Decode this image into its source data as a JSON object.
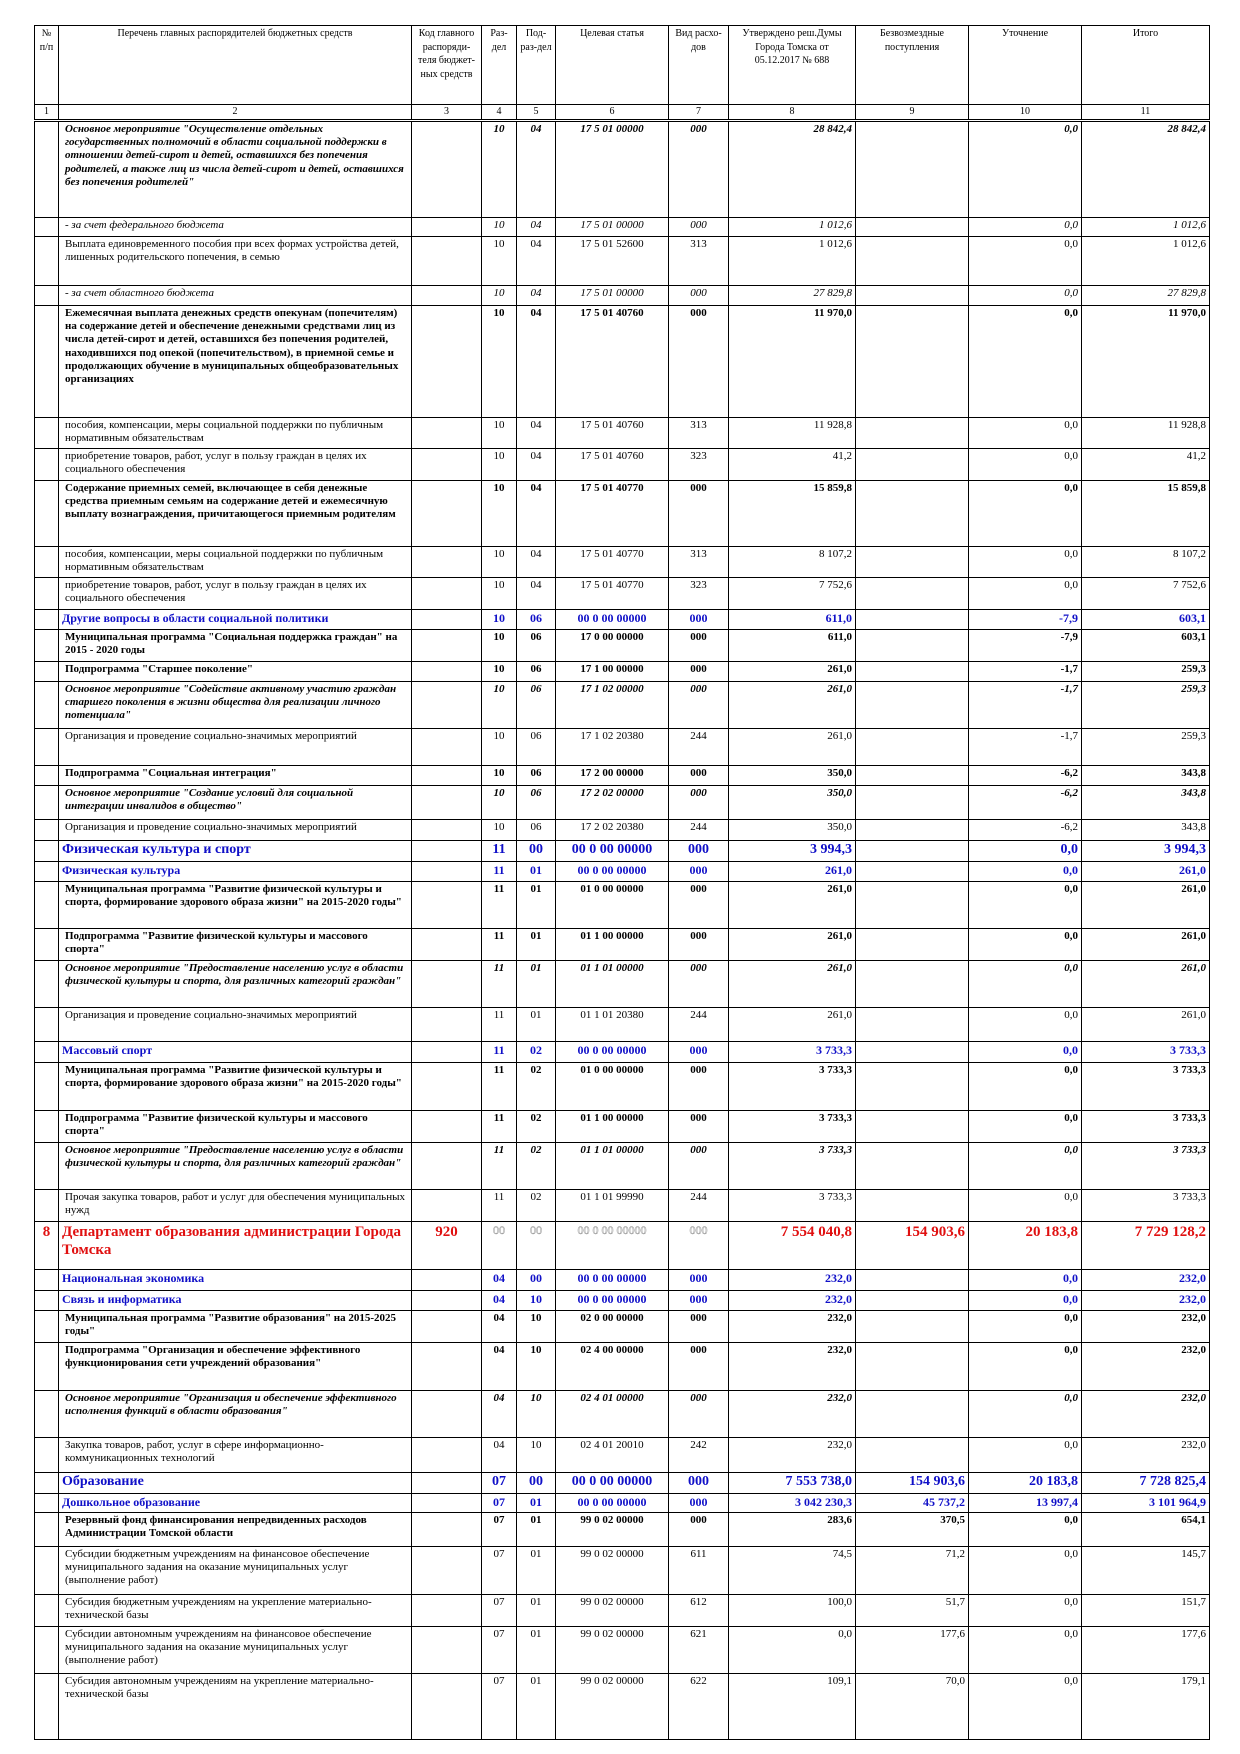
{
  "table": {
    "header": [
      "№ п/п",
      "Перечень главных распорядителей бюджетных средств",
      "Код главного распоряди-теля бюджет-ных средств",
      "Раз-дел",
      "Под-раз-дел",
      "Целевая статья",
      "Вид расхо-дов",
      "Утверждено реш.Думы Города Томска от 05.12.2017 № 688",
      "Безвозмездные поступления",
      "Уточнение",
      "Итого"
    ],
    "column_numbers": [
      "1",
      "2",
      "3",
      "4",
      "5",
      "6",
      "7",
      "8",
      "9",
      "10",
      "11"
    ],
    "rows": [
      [
        null,
        "Основное мероприятие \"Осуществление отдельных государственных полномочий в области социальной поддержки в отношении детей-сирот и детей, оставшихся без попечения родителей, а также лиц из числа детей-сирот и детей, оставшихся без попечения родителей\"",
        null,
        "10",
        "04",
        "17 5 01 00000",
        "000",
        "28 842,4",
        null,
        "0,0",
        "28 842,4"
      ],
      [
        null,
        "- за счет федерального бюджета",
        null,
        "10",
        "04",
        "17 5 01 00000",
        "000",
        "1 012,6",
        null,
        "0,0",
        "1 012,6"
      ],
      [
        null,
        "Выплата единовременного пособия при всех формах устройства детей, лишенных родительского попечения, в семью",
        null,
        "10",
        "04",
        "17 5 01 52600",
        "313",
        "1 012,6",
        null,
        "0,0",
        "1 012,6"
      ],
      [
        null,
        "- за счет областного бюджета",
        null,
        "10",
        "04",
        "17 5 01 00000",
        "000",
        "27 829,8",
        null,
        "0,0",
        "27 829,8"
      ],
      [
        null,
        "Ежемесячная выплата денежных средств опекунам (попечителям) на содержание детей и обеспечение денежными средствами лиц из числа детей-сирот и детей, оставшихся без попечения родителей, находившихся под опекой (попечительством), в приемной семье и продолжающих обучение в муниципальных общеобразовательных организациях",
        null,
        "10",
        "04",
        "17 5 01 40760",
        "000",
        "11 970,0",
        null,
        "0,0",
        "11 970,0"
      ],
      [
        null,
        "пособия, компенсации, меры социальной поддержки по публичным нормативным обязательствам",
        null,
        "10",
        "04",
        "17 5 01 40760",
        "313",
        "11 928,8",
        null,
        "0,0",
        "11 928,8"
      ],
      [
        null,
        "приобретение товаров, работ, услуг в пользу граждан в целях их социального обеспечения",
        null,
        "10",
        "04",
        "17 5 01 40760",
        "323",
        "41,2",
        null,
        "0,0",
        "41,2"
      ],
      [
        null,
        "Содержание приемных семей, включающее в себя денежные средства приемным семьям на содержание детей и ежемесячную выплату вознаграждения, причитающегося приемным родителям",
        null,
        "10",
        "04",
        "17 5 01 40770",
        "000",
        "15 859,8",
        null,
        "0,0",
        "15 859,8"
      ],
      [
        null,
        "пособия, компенсации, меры социальной поддержки по публичным нормативным обязательствам",
        null,
        "10",
        "04",
        "17 5 01 40770",
        "313",
        "8 107,2",
        null,
        "0,0",
        "8 107,2"
      ],
      [
        null,
        "приобретение товаров, работ, услуг в пользу граждан в целях их социального обеспечения",
        null,
        "10",
        "04",
        "17 5 01 40770",
        "323",
        "7 752,6",
        null,
        "0,0",
        "7 752,6"
      ],
      [
        null,
        "Другие вопросы в области социальной политики",
        null,
        "10",
        "06",
        "00 0 00 00000",
        "000",
        "611,0",
        null,
        "-7,9",
        "603,1"
      ],
      [
        null,
        "Муниципальная программа \"Социальная поддержка граждан\" на 2015 - 2020 годы",
        null,
        "10",
        "06",
        "17 0 00 00000",
        "000",
        "611,0",
        null,
        "-7,9",
        "603,1"
      ],
      [
        null,
        "Подпрограмма \"Старшее поколение\"",
        null,
        "10",
        "06",
        "17 1 00 00000",
        "000",
        "261,0",
        null,
        "-1,7",
        "259,3"
      ],
      [
        null,
        "Основное мероприятие \"Содействие активному участию граждан старшего поколения в жизни общества для реализации личного потенциала\"",
        null,
        "10",
        "06",
        "17 1 02 00000",
        "000",
        "261,0",
        null,
        "-1,7",
        "259,3"
      ],
      [
        null,
        "Организация и проведение социально-значимых мероприятий",
        null,
        "10",
        "06",
        "17 1 02 20380",
        "244",
        "261,0",
        null,
        "-1,7",
        "259,3"
      ],
      [
        null,
        "Подпрограмма \"Социальная интеграция\"",
        null,
        "10",
        "06",
        "17 2 00 00000",
        "000",
        "350,0",
        null,
        "-6,2",
        "343,8"
      ],
      [
        null,
        "Основное мероприятие \"Создание условий для социальной интеграции инвалидов в общество\"",
        null,
        "10",
        "06",
        "17 2 02 00000",
        "000",
        "350,0",
        null,
        "-6,2",
        "343,8"
      ],
      [
        null,
        "Организация и проведение социально-значимых мероприятий",
        null,
        "10",
        "06",
        "17 2 02 20380",
        "244",
        "350,0",
        null,
        "-6,2",
        "343,8"
      ],
      [
        null,
        "Физическая культура и спорт",
        null,
        "11",
        "00",
        "00 0 00 00000",
        "000",
        "3 994,3",
        null,
        "0,0",
        "3 994,3"
      ],
      [
        null,
        "Физическая культура",
        null,
        "11",
        "01",
        "00 0 00 00000",
        "000",
        "261,0",
        null,
        "0,0",
        "261,0"
      ],
      [
        null,
        "Муниципальная программа \"Развитие физической культуры и спорта, формирование здорового образа жизни\" на 2015-2020 годы\"",
        null,
        "11",
        "01",
        "01 0 00 00000",
        "000",
        "261,0",
        null,
        "0,0",
        "261,0"
      ],
      [
        null,
        "Подпрограмма \"Развитие физической культуры и массового спорта\"",
        null,
        "11",
        "01",
        "01 1 00 00000",
        "000",
        "261,0",
        null,
        "0,0",
        "261,0"
      ],
      [
        null,
        "Основное мероприятие \"Предоставление населению услуг в области физической культуры и спорта, для различных категорий граждан\"",
        null,
        "11",
        "01",
        "01 1 01 00000",
        "000",
        "261,0",
        null,
        "0,0",
        "261,0"
      ],
      [
        null,
        "Организация и проведение социально-значимых мероприятий",
        null,
        "11",
        "01",
        "01 1 01 20380",
        "244",
        "261,0",
        null,
        "0,0",
        "261,0"
      ],
      [
        null,
        "Массовый спорт",
        null,
        "11",
        "02",
        "00 0 00 00000",
        "000",
        "3 733,3",
        null,
        "0,0",
        "3 733,3"
      ],
      [
        null,
        "Муниципальная программа \"Развитие физической культуры и спорта, формирование здорового образа жизни\" на 2015-2020 годы\"",
        null,
        "11",
        "02",
        "01 0 00 00000",
        "000",
        "3 733,3",
        null,
        "0,0",
        "3 733,3"
      ],
      [
        null,
        "Подпрограмма \"Развитие физической культуры и массового спорта\"",
        null,
        "11",
        "02",
        "01 1 00 00000",
        "000",
        "3 733,3",
        null,
        "0,0",
        "3 733,3"
      ],
      [
        null,
        "Основное мероприятие \"Предоставление населению услуг в области физической культуры и спорта, для различных категорий граждан\"",
        null,
        "11",
        "02",
        "01 1 01 00000",
        "000",
        "3 733,3",
        null,
        "0,0",
        "3 733,3"
      ],
      [
        null,
        "Прочая закупка товаров, работ и услуг для обеспечения муниципальных нужд",
        null,
        "11",
        "02",
        "01 1 01 99990",
        "244",
        "3 733,3",
        null,
        "0,0",
        "3 733,3"
      ],
      [
        "8",
        "Департамент образования администрации Города Томска",
        "920",
        "00",
        "00",
        "00 0 00 00000",
        "000",
        "7 554 040,8",
        "154 903,6",
        "20 183,8",
        "7 729 128,2"
      ],
      [
        null,
        "Национальная экономика",
        null,
        "04",
        "00",
        "00 0 00 00000",
        "000",
        "232,0",
        null,
        "0,0",
        "232,0"
      ],
      [
        null,
        "Связь и информатика",
        null,
        "04",
        "10",
        "00 0 00 00000",
        "000",
        "232,0",
        null,
        "0,0",
        "232,0"
      ],
      [
        null,
        "Муниципальная программа \"Развитие образования\" на 2015-2025 годы\"",
        null,
        "04",
        "10",
        "02 0 00 00000",
        "000",
        "232,0",
        null,
        "0,0",
        "232,0"
      ],
      [
        null,
        "Подпрограмма \"Организация и обеспечение эффективного функционирования сети учреждений образования\"",
        null,
        "04",
        "10",
        "02 4 00 00000",
        "000",
        "232,0",
        null,
        "0,0",
        "232,0"
      ],
      [
        null,
        "Основное мероприятие \"Организация и обеспечение эффективного исполнения функций в области образования\"",
        null,
        "04",
        "10",
        "02 4 01 00000",
        "000",
        "232,0",
        null,
        "0,0",
        "232,0"
      ],
      [
        null,
        "Закупка товаров, работ, услуг в сфере информационно-коммуникационных технологий",
        null,
        "04",
        "10",
        "02 4 01 20010",
        "242",
        "232,0",
        null,
        "0,0",
        "232,0"
      ],
      [
        null,
        "Образование",
        null,
        "07",
        "00",
        "00 0 00 00000",
        "000",
        "7 553 738,0",
        "154 903,6",
        "20 183,8",
        "7 728 825,4"
      ],
      [
        null,
        "Дошкольное образование",
        null,
        "07",
        "01",
        "00 0 00 00000",
        "000",
        "3 042 230,3",
        "45 737,2",
        "13 997,4",
        "3 101 964,9"
      ],
      [
        null,
        "Резервный фонд финансирования непредвиденных расходов Администрации Томской области",
        null,
        "07",
        "01",
        "99 0 02 00000",
        "000",
        "283,6",
        "370,5",
        "0,0",
        "654,1"
      ],
      [
        null,
        "Субсидии бюджетным учреждениям на финансовое обеспечение муниципального задания на оказание муниципальных услуг (выполнение работ)",
        null,
        "07",
        "01",
        "99 0 02 00000",
        "611",
        "74,5",
        "71,2",
        "0,0",
        "145,7"
      ],
      [
        null,
        "Субсидия бюджетным учреждениям на укрепление материально-технической базы",
        null,
        "07",
        "01",
        "99 0 02 00000",
        "612",
        "100,0",
        "51,7",
        "0,0",
        "151,7"
      ],
      [
        null,
        "Субсидии автономным учреждениям на финансовое обеспечение муниципального задания на оказание муниципальных услуг (выполнение работ)",
        null,
        "07",
        "01",
        "99 0 02 00000",
        "621",
        "0,0",
        "177,6",
        "0,0",
        "177,6"
      ],
      [
        null,
        "Субсидия автономным учреждениям на укрепление материально-технической базы",
        null,
        "07",
        "01",
        "99 0 02 00000",
        "622",
        "109,1",
        "70,0",
        "0,0",
        "179,1"
      ]
    ]
  }
}
